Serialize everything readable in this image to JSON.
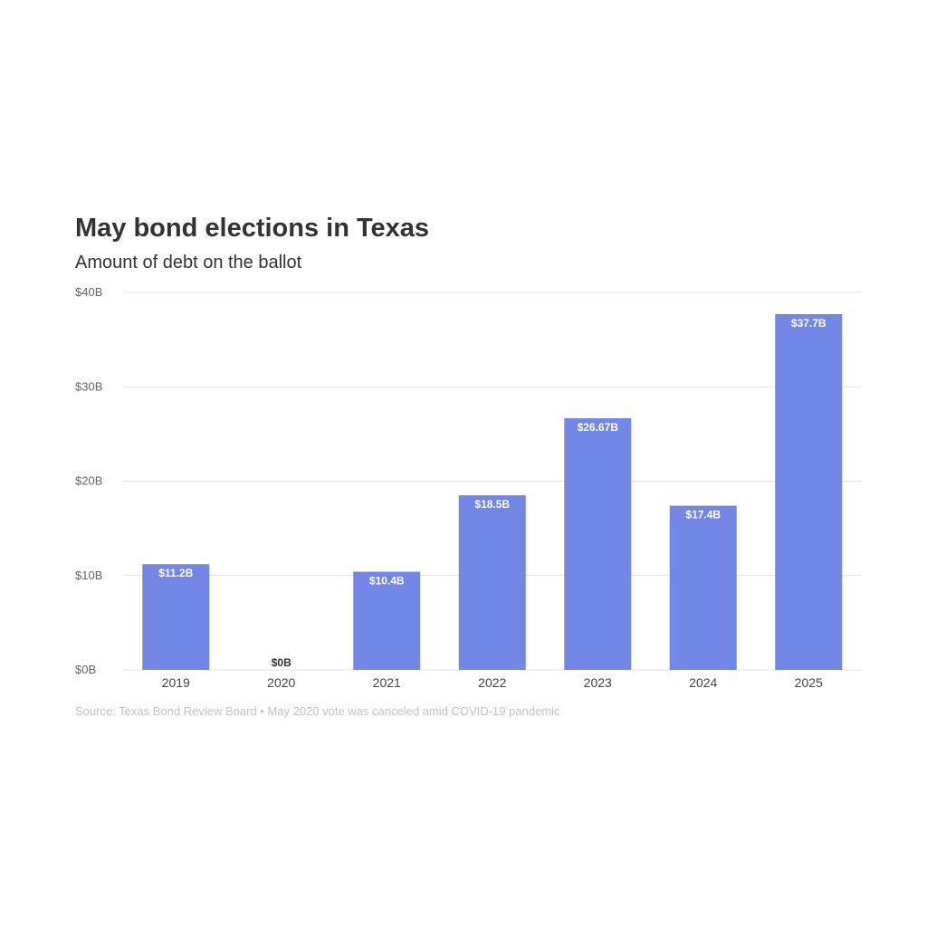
{
  "chart_data": {
    "type": "bar",
    "title": "May bond elections in Texas",
    "subtitle": "Amount of debt on the ballot",
    "categories": [
      "2019",
      "2020",
      "2021",
      "2022",
      "2023",
      "2024",
      "2025"
    ],
    "values": [
      11.2,
      0,
      10.4,
      18.5,
      26.67,
      17.4,
      37.7
    ],
    "value_labels": [
      "$11.2B",
      "$0B",
      "$10.4B",
      "$18.5B",
      "$26.67B",
      "$17.4B",
      "$37.7B"
    ],
    "ylim": [
      0,
      40
    ],
    "yticks": [
      0,
      10,
      20,
      30,
      40
    ],
    "ytick_labels": [
      "$0B",
      "$10B",
      "$20B",
      "$30B",
      "$40B"
    ],
    "xlabel": "",
    "ylabel": "",
    "grid": true,
    "legend": "none",
    "bar_color": "#7387e6",
    "source": "Source: Texas Bond Review Board • May 2020 vote was canceled amid COVID-19 pandemic"
  }
}
